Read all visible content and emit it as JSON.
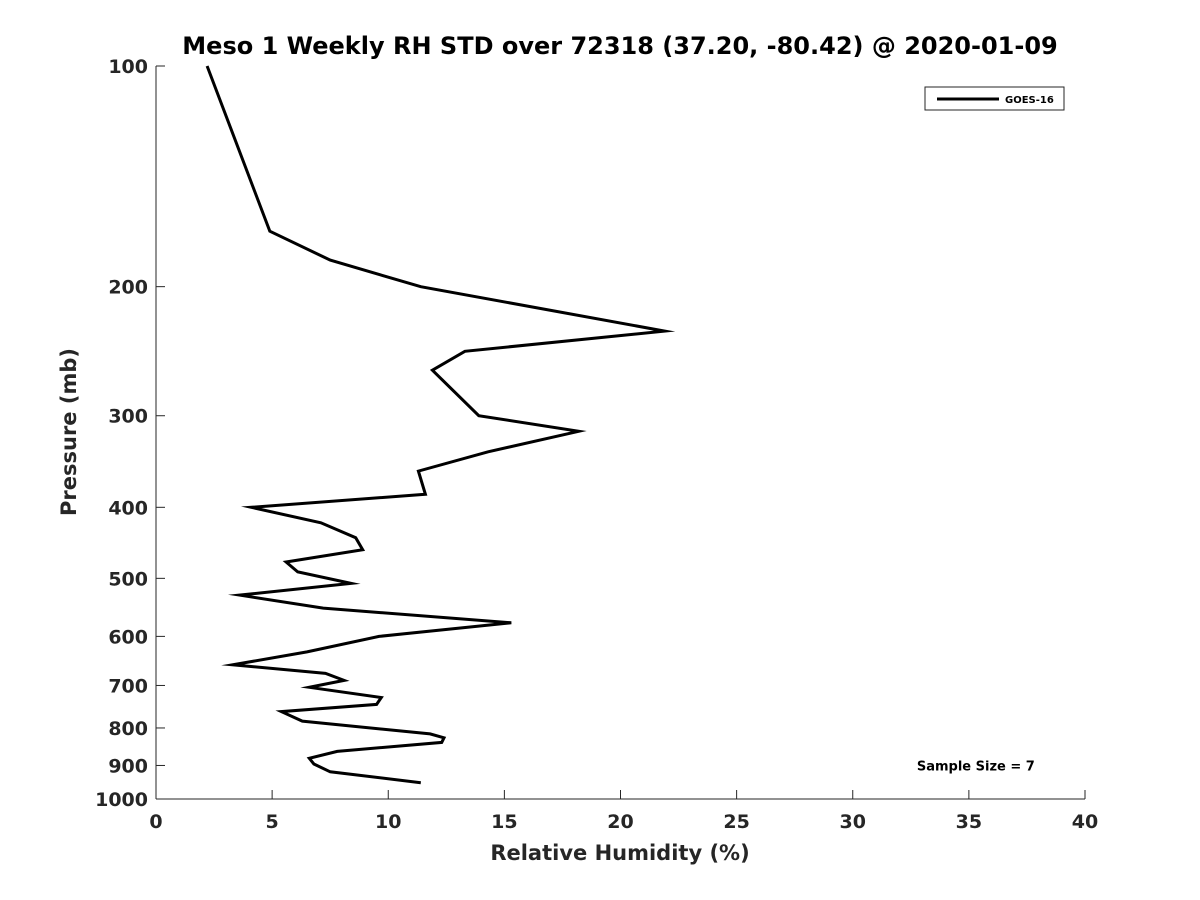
{
  "chart_data": {
    "type": "line",
    "title": "Meso 1 Weekly RH STD over 72318 (37.20, -80.42) @ 2020-01-09",
    "xlabel": "Relative Humidity (%)",
    "ylabel": "Pressure (mb)",
    "xlim": [
      0,
      40
    ],
    "ylim": [
      1000,
      100
    ],
    "y_scale": "log",
    "y_reversed": true,
    "grid": false,
    "x_ticks": [
      0,
      5,
      10,
      15,
      20,
      25,
      30,
      35,
      40
    ],
    "x_tick_labels": [
      "0",
      "5",
      "10",
      "15",
      "20",
      "25",
      "30",
      "35",
      "40"
    ],
    "y_ticks": [
      100,
      200,
      300,
      400,
      500,
      600,
      700,
      800,
      900,
      1000
    ],
    "y_tick_labels": [
      "100",
      "200",
      "300",
      "400",
      "500",
      "600",
      "700",
      "800",
      "900",
      "1000"
    ],
    "legend_position": "top-right",
    "series": [
      {
        "name": "GOES-16",
        "color": "#000000",
        "x": [
          2.2,
          4.9,
          7.5,
          11.4,
          21.9,
          13.3,
          11.9,
          13.9,
          18.2,
          14.3,
          11.3,
          11.6,
          4.1,
          7.1,
          8.6,
          8.9,
          5.6,
          6.1,
          8.4,
          3.6,
          7.2,
          15.3,
          9.6,
          6.5,
          3.3,
          7.3,
          8.1,
          6.6,
          9.7,
          9.5,
          5.4,
          6.3,
          11.8,
          12.4,
          12.3,
          7.8,
          6.6,
          6.8,
          7.5,
          11.4
        ],
        "y": [
          100,
          168,
          184,
          200,
          230,
          245,
          260,
          300,
          315,
          336,
          357,
          384,
          400,
          420,
          440,
          457,
          475,
          490,
          508,
          527,
          549,
          575,
          600,
          630,
          656,
          674,
          689,
          704,
          727,
          743,
          760,
          783,
          815,
          825,
          837,
          861,
          880,
          896,
          918,
          950
        ]
      }
    ],
    "annotations": [
      {
        "text": "Sample Size = 7",
        "x": 35.3,
        "y": 900
      }
    ]
  }
}
